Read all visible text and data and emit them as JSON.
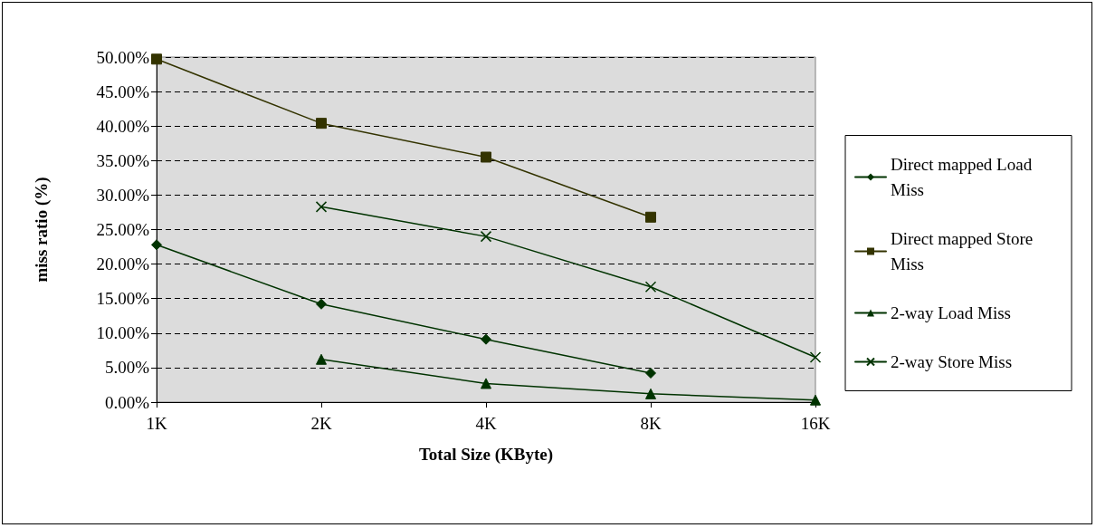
{
  "chart_data": {
    "type": "line",
    "xlabel": "Total Size (KByte)",
    "ylabel": "miss ratio (%)",
    "categories": [
      "1K",
      "2K",
      "4K",
      "8K",
      "16K"
    ],
    "series": [
      {
        "name": "Direct mapped Load Miss",
        "color": "#003300",
        "marker": "diamond",
        "values": [
          22.8,
          14.2,
          9.1,
          4.2,
          null
        ]
      },
      {
        "name": "Direct mapped Store Miss",
        "color": "#333300",
        "marker": "square",
        "values": [
          49.7,
          40.4,
          35.5,
          26.8,
          null
        ]
      },
      {
        "name": "2-way Load Miss",
        "color": "#003300",
        "marker": "triangle",
        "values": [
          null,
          6.2,
          2.7,
          1.2,
          0.3
        ]
      },
      {
        "name": "2-way Store Miss",
        "color": "#003300",
        "marker": "cross",
        "values": [
          null,
          28.3,
          24.0,
          16.7,
          6.5
        ]
      }
    ],
    "ylim": [
      0,
      50
    ],
    "yticks": [
      {
        "value": 0,
        "label": "0.00%"
      },
      {
        "value": 5,
        "label": "5.00%"
      },
      {
        "value": 10,
        "label": "10.00%"
      },
      {
        "value": 15,
        "label": "15.00%"
      },
      {
        "value": 20,
        "label": "20.00%"
      },
      {
        "value": 25,
        "label": "25.00%"
      },
      {
        "value": 30,
        "label": "30.00%"
      },
      {
        "value": 35,
        "label": "35.00%"
      },
      {
        "value": 40,
        "label": "40.00%"
      },
      {
        "value": 45,
        "label": "45.00%"
      },
      {
        "value": 50,
        "label": "50.00%"
      }
    ],
    "grid": "y",
    "legend": "right",
    "line_style": "solid"
  }
}
